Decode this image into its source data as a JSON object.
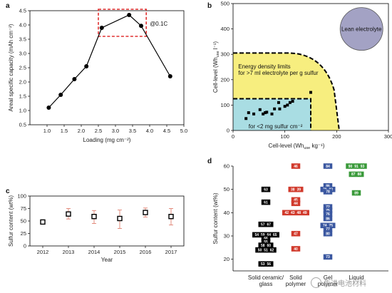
{
  "panels": {
    "a": {
      "letter": "a"
    },
    "b": {
      "letter": "b"
    },
    "c": {
      "letter": "c"
    },
    "d": {
      "letter": "d"
    }
  },
  "watermark": {
    "text": "先进电池材料"
  },
  "chart_data": [
    {
      "id": "a",
      "type": "line",
      "xlabel": "Loading (mg cm⁻²)",
      "ylabel": "Areal specific capacity (mAh cm⁻²)",
      "xlim": [
        0.5,
        5.0
      ],
      "ylim": [
        0.5,
        4.5
      ],
      "xticks": [
        "1.0",
        "1.5",
        "2.0",
        "2.5",
        "3.0",
        "3.5",
        "4.0",
        "4.5",
        "5.0"
      ],
      "yticks": [
        "0.5",
        "1.0",
        "1.5",
        "2.0",
        "2.5",
        "3.0",
        "3.5",
        "4.0",
        "4.5"
      ],
      "x": [
        1.05,
        1.4,
        1.8,
        2.15,
        2.6,
        3.4,
        3.75,
        4.6
      ],
      "y": [
        1.1,
        1.55,
        2.1,
        2.55,
        3.9,
        4.35,
        3.97,
        2.2
      ],
      "annotation": "@0.1C",
      "highlight_box_x": [
        2.5,
        3.9
      ],
      "highlight_box_y": [
        3.6,
        4.55
      ],
      "colors": {
        "line": "#000000",
        "box": "#e03030"
      }
    },
    {
      "id": "b",
      "type": "area",
      "xlabel": "Cell-level (Wh",
      "xlabel_sub": "use",
      "xlabel_tail": " kg⁻¹)",
      "ylabel": "Cell-level (Wh",
      "ylabel_sub": "use",
      "ylabel_tail": " l⁻¹)",
      "xlim": [
        0,
        300
      ],
      "ylim": [
        0,
        500
      ],
      "xticks": [
        "0",
        "100",
        "200",
        "300"
      ],
      "yticks": [
        "0",
        "100",
        "200",
        "300",
        "400",
        "500"
      ],
      "regions": [
        {
          "label": "Energy density limits\nfor >7 ml electrolyte per g sulfur",
          "color": "#f7ee7f"
        },
        {
          "label": "for <2 mg sulfur cm⁻²",
          "color": "#a9dde3"
        },
        {
          "label": "Lean electrolyte",
          "color": "#a3a2c4"
        }
      ],
      "points": {
        "x": [
          25,
          30,
          40,
          52,
          58,
          62,
          65,
          75,
          80,
          88,
          90,
          100,
          105,
          110,
          115,
          150
        ],
        "y": [
          47,
          70,
          65,
          82,
          65,
          70,
          72,
          65,
          85,
          110,
          85,
          95,
          100,
          110,
          115,
          150
        ]
      }
    },
    {
      "id": "c",
      "type": "scatter",
      "xlabel": "Year",
      "ylabel": "Sulfur content (wt%)",
      "ylim": [
        0,
        100
      ],
      "xticks": [
        "2012",
        "2013",
        "2014",
        "2015",
        "2016",
        "2017"
      ],
      "yticks": [
        "0",
        "25",
        "50",
        "75",
        "100"
      ],
      "x": [
        2012,
        2013,
        2014,
        2015,
        2016,
        2017
      ],
      "y": [
        48,
        64,
        59,
        55,
        67,
        59
      ],
      "err_low": [
        0,
        10,
        14,
        20,
        9,
        17
      ],
      "err_high": [
        0,
        11,
        12,
        17,
        9,
        16
      ],
      "colors": {
        "marker": "#000000",
        "error": "#e08070"
      }
    },
    {
      "id": "d",
      "type": "scatter",
      "ylabel": "Sulfur content (wt%)",
      "ylim": [
        15,
        60
      ],
      "yticks": [
        "20",
        "30",
        "40",
        "50",
        "60"
      ],
      "categories": [
        {
          "name": "Solid ceramic/\nglass",
          "color": "#000000",
          "text_color": "#000000"
        },
        {
          "name": "Solid\npolymer",
          "color": "#d13a2c",
          "text_color": "#d13a2c"
        },
        {
          "name": "Gel\npolymer",
          "color": "#3a57a0",
          "text_color": "#3a57a0"
        },
        {
          "name": "Liquid",
          "color": "#3a9a3a",
          "text_color": "#3a9a3a"
        }
      ],
      "boxes": [
        {
          "cat": 0,
          "y": 50,
          "labels": [
            "63"
          ]
        },
        {
          "cat": 0,
          "y": 44.5,
          "labels": [
            "61"
          ]
        },
        {
          "cat": 0,
          "y": 35,
          "labels": [
            "57",
            "67"
          ]
        },
        {
          "cat": 0,
          "y": 30.5,
          "labels": [
            "54",
            "59",
            "64",
            "65"
          ]
        },
        {
          "cat": 0,
          "y": 29,
          "labels": [
            "66"
          ]
        },
        {
          "cat": 0,
          "y": 27.5,
          "labels": [
            "55"
          ]
        },
        {
          "cat": 0,
          "y": 26,
          "labels": [
            "58",
            "60"
          ]
        },
        {
          "cat": 0,
          "y": 24,
          "labels": [
            "50",
            "51",
            "62"
          ]
        },
        {
          "cat": 0,
          "y": 18,
          "labels": [
            "53",
            "56"
          ]
        },
        {
          "cat": 1,
          "y": 60,
          "labels": [
            "46"
          ]
        },
        {
          "cat": 1,
          "y": 50,
          "labels": [
            "38",
            "39"
          ]
        },
        {
          "cat": 1,
          "y": 45.5,
          "labels": [
            "45"
          ]
        },
        {
          "cat": 1,
          "y": 44,
          "labels": [
            "44"
          ]
        },
        {
          "cat": 1,
          "y": 40,
          "labels": [
            "42",
            "43",
            "48",
            "49"
          ]
        },
        {
          "cat": 1,
          "y": 31,
          "labels": [
            "47"
          ]
        },
        {
          "cat": 1,
          "y": 24.5,
          "labels": [
            "40"
          ]
        },
        {
          "cat": 2,
          "y": 60,
          "labels": [
            "84"
          ]
        },
        {
          "cat": 2,
          "y": 51.5,
          "labels": [
            "86"
          ]
        },
        {
          "cat": 2,
          "y": 50,
          "labels": [
            "79",
            "83"
          ]
        },
        {
          "cat": 2,
          "y": 49,
          "labels": [
            "78"
          ]
        },
        {
          "cat": 2,
          "y": 42.5,
          "labels": [
            "72"
          ]
        },
        {
          "cat": 2,
          "y": 41,
          "labels": [
            "75"
          ]
        },
        {
          "cat": 2,
          "y": 39.5,
          "labels": [
            "76"
          ]
        },
        {
          "cat": 2,
          "y": 37.5,
          "labels": [
            "86"
          ]
        },
        {
          "cat": 2,
          "y": 34.5,
          "labels": [
            "74",
            "75"
          ]
        },
        {
          "cat": 2,
          "y": 33,
          "labels": [
            "77"
          ]
        },
        {
          "cat": 2,
          "y": 31,
          "labels": [
            "80"
          ]
        },
        {
          "cat": 2,
          "y": 21,
          "labels": [
            "73"
          ]
        },
        {
          "cat": 3,
          "y": 60,
          "labels": [
            "90",
            "91",
            "93"
          ]
        },
        {
          "cat": 3,
          "y": 56.5,
          "labels": [
            "87",
            "88"
          ]
        },
        {
          "cat": 3,
          "y": 48.5,
          "labels": [
            "89"
          ]
        }
      ]
    }
  ]
}
